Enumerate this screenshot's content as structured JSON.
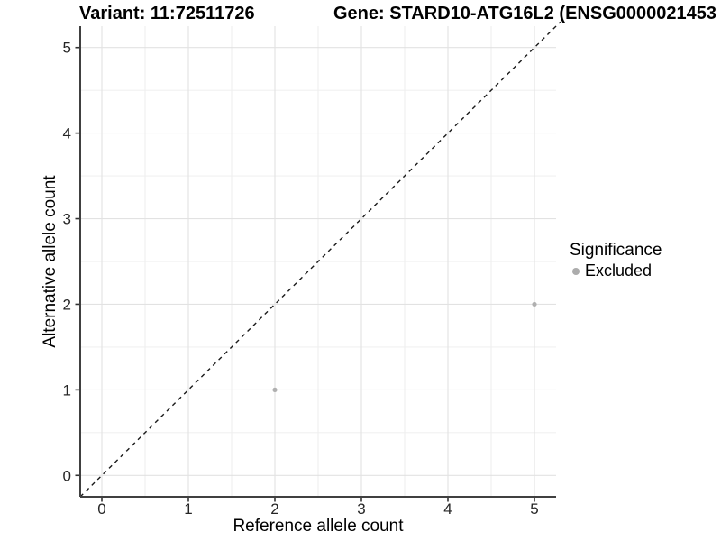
{
  "chart_data": {
    "type": "scatter",
    "titles": [
      "Variant: 11:72511726",
      "Gene: STARD10-ATG16L2 (ENSG0000021453"
    ],
    "xlabel": "Reference allele count",
    "ylabel": "Alternative allele count",
    "xlim": [
      -0.25,
      5.25
    ],
    "ylim": [
      -0.25,
      5.25
    ],
    "xticks": [
      0,
      1,
      2,
      3,
      4,
      5
    ],
    "yticks": [
      0,
      1,
      2,
      3,
      4,
      5
    ],
    "minor_grid_step": 0.5,
    "grid": true,
    "points": [
      {
        "x": 2,
        "y": 1,
        "series": "Excluded"
      },
      {
        "x": 5,
        "y": 2,
        "series": "Excluded"
      }
    ],
    "identity_line": {
      "style": "dashed",
      "from": -0.25,
      "to": 5.3
    },
    "legend_position": "right",
    "legend": {
      "title": "Significance",
      "items": [
        {
          "label": "Excluded",
          "color": "#acacac"
        }
      ]
    },
    "colors": {
      "point": "#b0b0b0",
      "grid_major": "#e2e2e2",
      "grid_minor": "#ededed",
      "axis_line": "#404040",
      "tick_mark": "#333333",
      "tick_label": "#262626",
      "dashed_line": "#1a1a1a",
      "background": "#ffffff"
    }
  }
}
